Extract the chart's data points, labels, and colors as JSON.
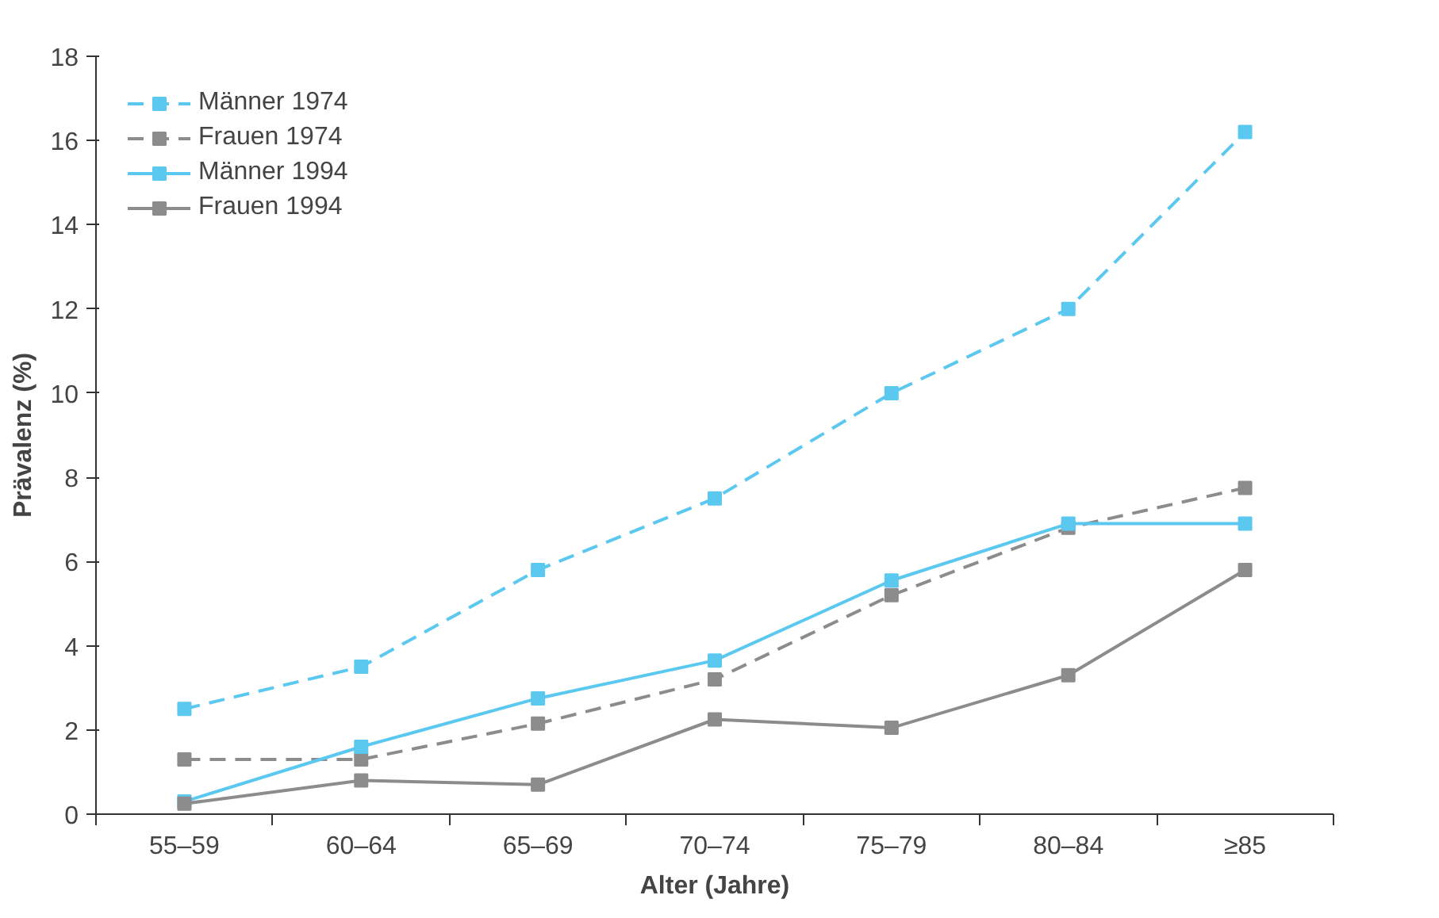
{
  "chart_data": {
    "type": "line",
    "xlabel": "Alter (Jahre)",
    "ylabel": "Prävalenz (%)",
    "categories": [
      "55–59",
      "60–64",
      "65–69",
      "70–74",
      "75–79",
      "80–84",
      "≥85"
    ],
    "ylim": [
      0,
      18
    ],
    "yticks": [
      0,
      2,
      4,
      6,
      8,
      10,
      12,
      14,
      16,
      18
    ],
    "grid": false,
    "legend": "top left",
    "marker": "square",
    "series": [
      {
        "name": "Männer 1974",
        "color": "#5bc8f0",
        "line_style": "dashed",
        "values": [
          2.5,
          3.5,
          5.8,
          7.5,
          10.0,
          12.0,
          16.2
        ]
      },
      {
        "name": "Frauen 1974",
        "color": "#8c8c8c",
        "line_style": "dashed",
        "values": [
          1.3,
          1.3,
          2.15,
          3.2,
          5.2,
          6.8,
          7.75
        ]
      },
      {
        "name": "Männer 1994",
        "color": "#5bc8f0",
        "line_style": "solid",
        "values": [
          0.3,
          1.6,
          2.75,
          3.65,
          5.55,
          6.9,
          6.9
        ]
      },
      {
        "name": "Frauen 1994",
        "color": "#8c8c8c",
        "line_style": "solid",
        "values": [
          0.25,
          0.8,
          0.7,
          2.25,
          2.05,
          3.3,
          5.8
        ]
      }
    ]
  }
}
